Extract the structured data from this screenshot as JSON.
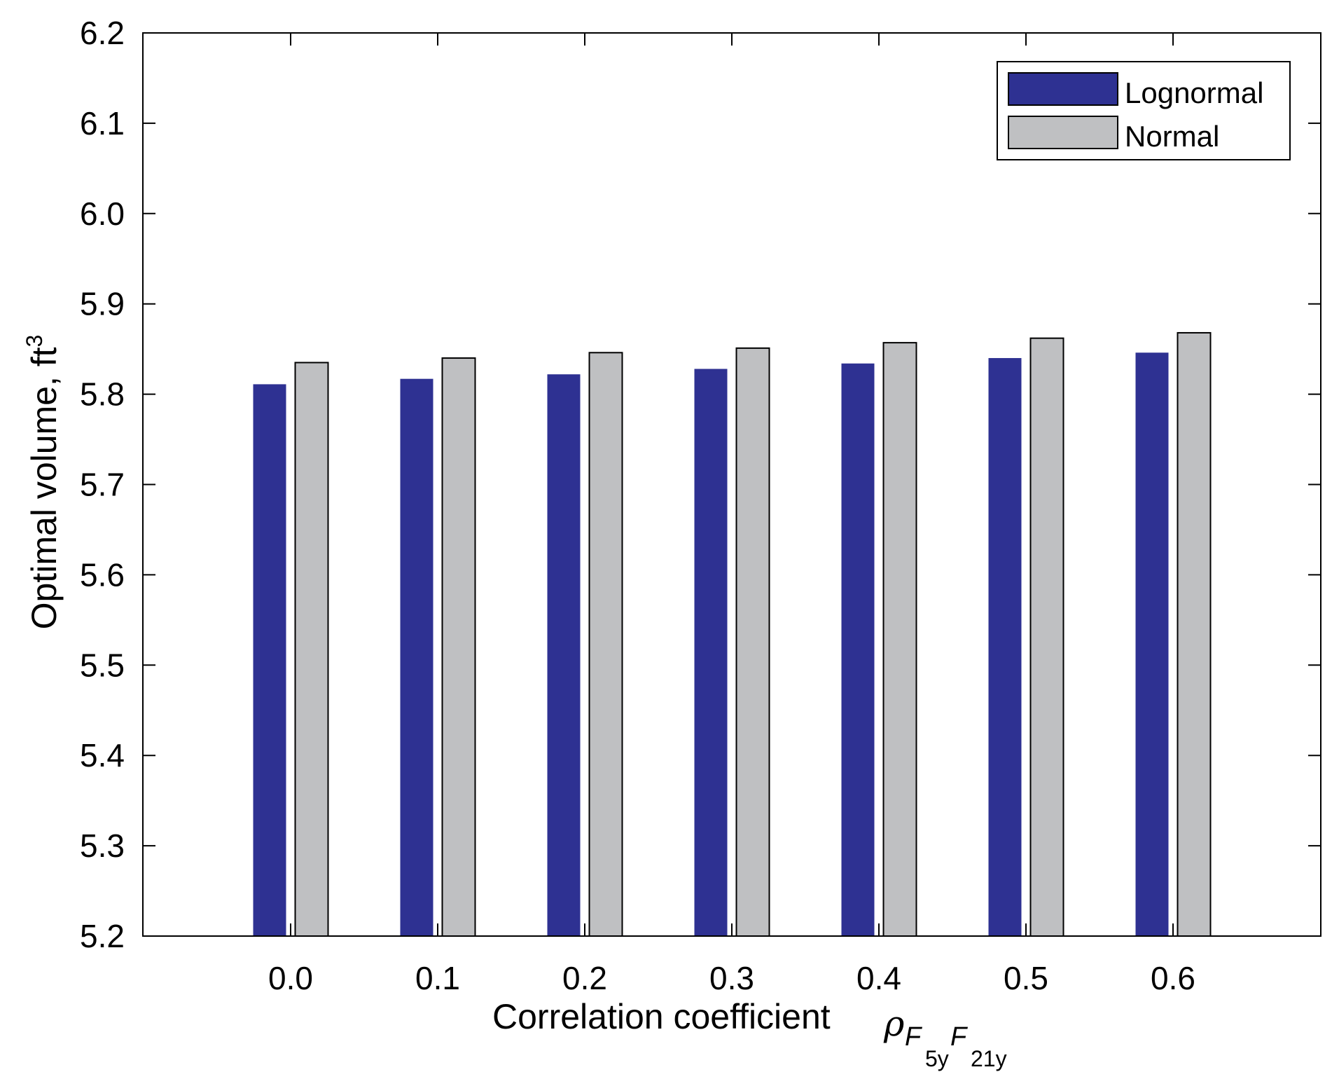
{
  "chart_data": {
    "type": "bar",
    "title": "",
    "xlabel": "Correlation coefficient",
    "xlabel_symbol": {
      "rho": "ρ",
      "f1": "F",
      "f1_sub": "5y",
      "f2": "F",
      "f2_sub": "21y"
    },
    "ylabel": "Optimal volume, ft",
    "ylabel_superscript": "3",
    "categories": [
      "0.0",
      "0.1",
      "0.2",
      "0.3",
      "0.4",
      "0.5",
      "0.6"
    ],
    "ylim": [
      5.2,
      6.2
    ],
    "yticks": [
      "5.2",
      "5.3",
      "5.4",
      "5.5",
      "5.6",
      "5.7",
      "5.8",
      "5.9",
      "6.0",
      "6.1",
      "6.2"
    ],
    "grid": false,
    "legend_position": "top-right",
    "series": [
      {
        "name": "Lognormal",
        "color": "#2e3192",
        "values": [
          5.811,
          5.817,
          5.822,
          5.828,
          5.834,
          5.84,
          5.846
        ]
      },
      {
        "name": "Normal",
        "color": "#bfc0c2",
        "values": [
          5.835,
          5.84,
          5.846,
          5.851,
          5.857,
          5.862,
          5.868
        ]
      }
    ]
  }
}
